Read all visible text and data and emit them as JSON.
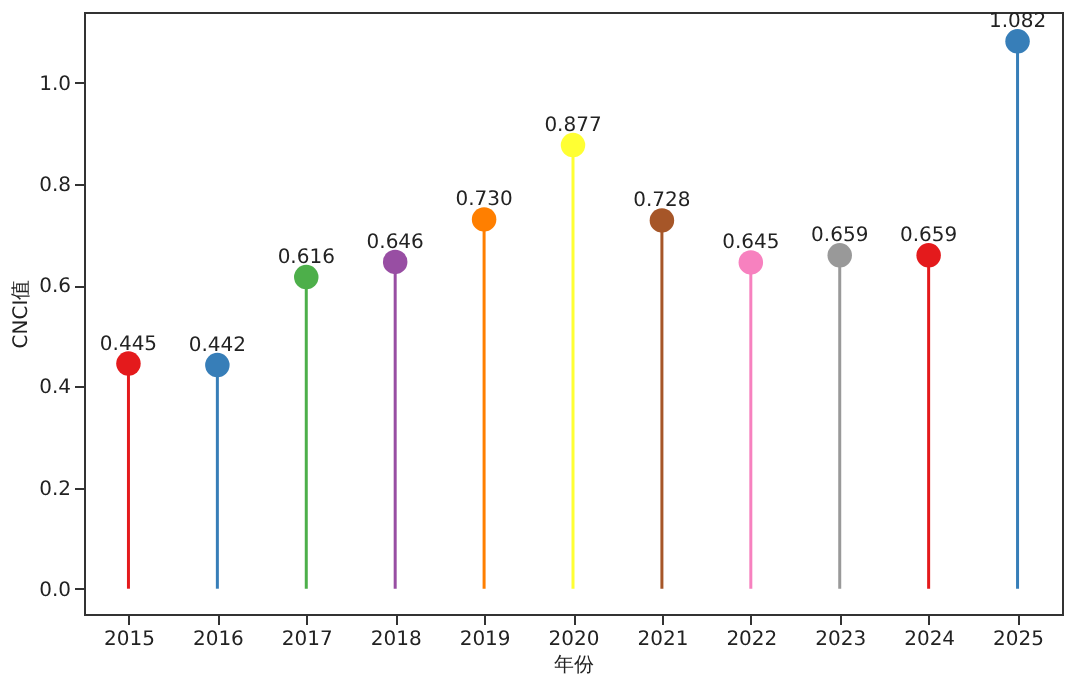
{
  "chart_data": {
    "type": "lollipop",
    "xlabel": "年份",
    "ylabel": "CNCI值",
    "categories": [
      "2015",
      "2016",
      "2017",
      "2018",
      "2019",
      "2020",
      "2021",
      "2022",
      "2023",
      "2024",
      "2025"
    ],
    "values": [
      0.445,
      0.442,
      0.616,
      0.646,
      0.73,
      0.877,
      0.728,
      0.645,
      0.659,
      0.659,
      1.082
    ],
    "colors": [
      "#e41a1c",
      "#377eb8",
      "#4daf4a",
      "#984ea3",
      "#ff7f00",
      "#ffff33",
      "#a65628",
      "#f781bf",
      "#999999",
      "#e41a1c",
      "#377eb8"
    ],
    "value_labels": [
      "0.445",
      "0.442",
      "0.616",
      "0.646",
      "0.730",
      "0.877",
      "0.728",
      "0.645",
      "0.659",
      "0.659",
      "1.082"
    ],
    "ylim": [
      -0.05,
      1.14
    ],
    "yticks": [
      {
        "value": 0,
        "label": "0.0"
      },
      {
        "value": 0.2,
        "label": "0.2"
      },
      {
        "value": 0.4,
        "label": "0.4"
      },
      {
        "value": 0.6,
        "label": "0.6"
      },
      {
        "value": 0.8,
        "label": "0.8"
      },
      {
        "value": 1,
        "label": "1.0"
      }
    ],
    "marker": "circle"
  }
}
